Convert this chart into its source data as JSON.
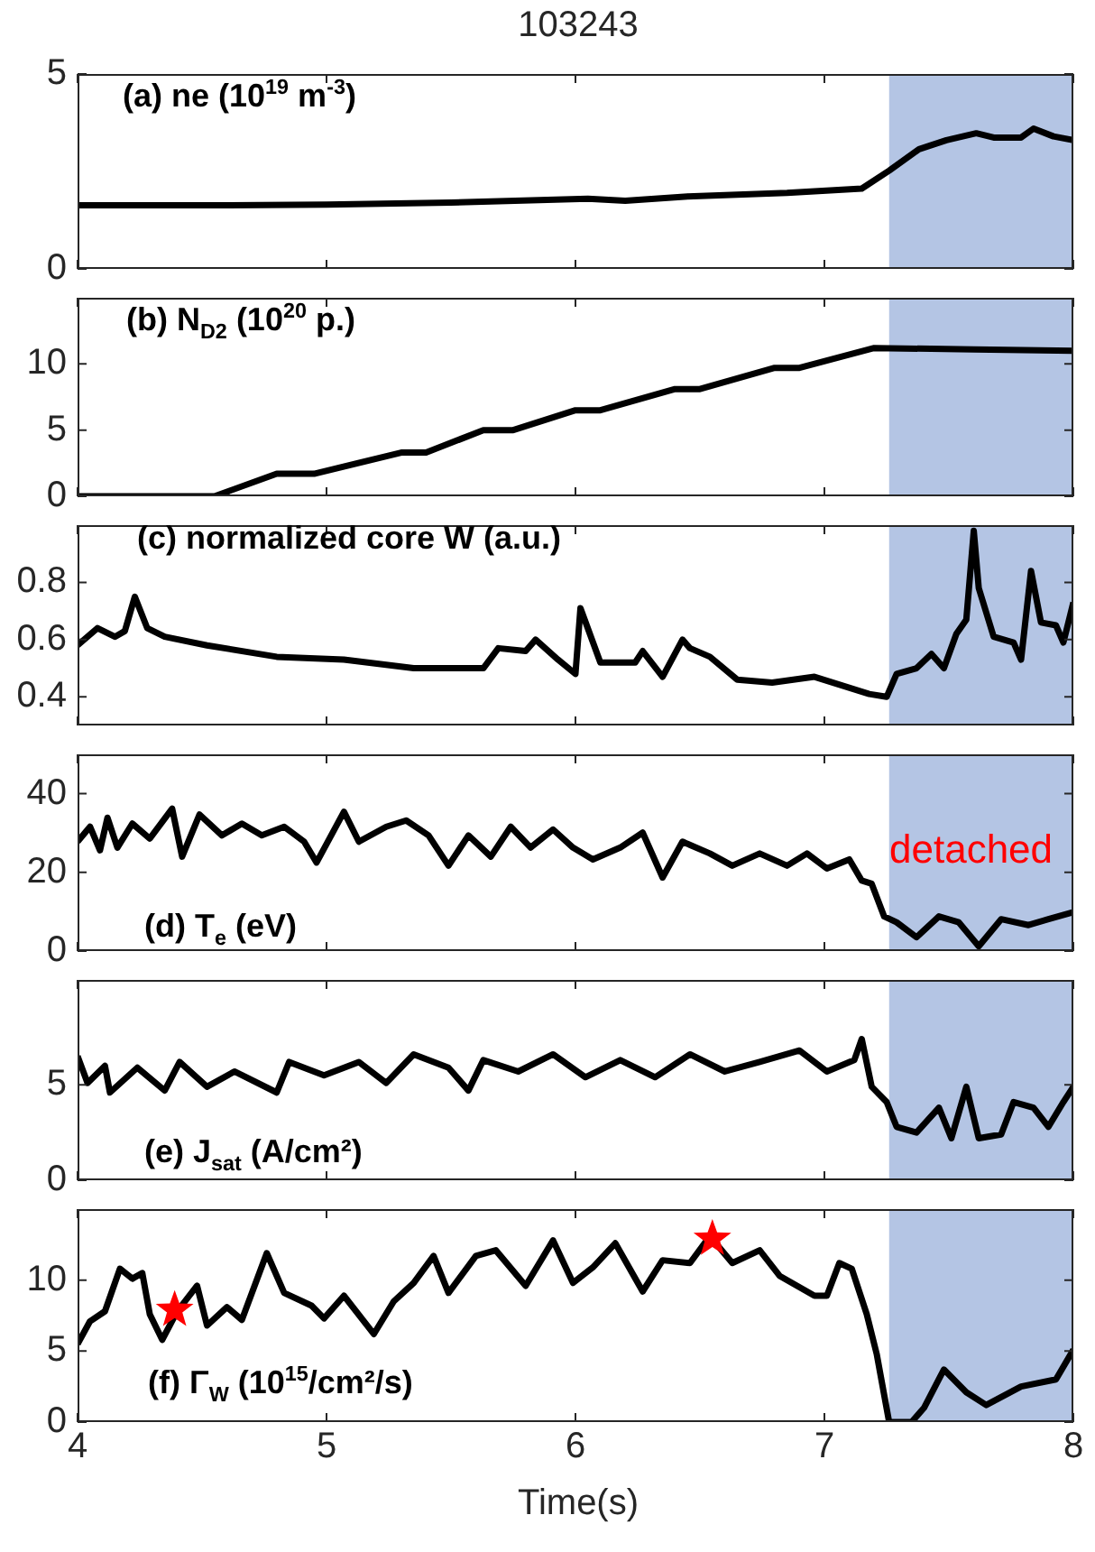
{
  "chart_data": [
    {
      "type": "line",
      "title": "103243",
      "annotations": [
        "(a) ne (10$^{19}$ m$^{-3}$)"
      ],
      "xlim": [
        4,
        8
      ],
      "xticks": [
        4,
        5,
        6,
        7,
        8
      ],
      "ylim": [
        0,
        5
      ],
      "yticks": [
        0,
        5
      ],
      "tick_labels": "y",
      "bands": [
        {
          "axis": "x",
          "from": 7.26,
          "to": 8,
          "color": "#b4c5e4"
        }
      ],
      "series": [
        {
          "color": "#000000",
          "x": [
            4.0,
            4.5,
            5.0,
            5.5,
            6.05,
            6.2,
            6.45,
            6.85,
            7.15,
            7.26,
            7.38,
            7.49,
            7.61,
            7.68,
            7.79,
            7.84,
            7.92,
            8.0
          ],
          "values": [
            1.63,
            1.63,
            1.65,
            1.7,
            1.8,
            1.75,
            1.86,
            1.95,
            2.06,
            2.52,
            3.07,
            3.3,
            3.48,
            3.37,
            3.37,
            3.6,
            3.4,
            3.3
          ]
        }
      ]
    },
    {
      "type": "line",
      "annotations": [
        "(b) N$_{D2}$ (10$^{20}$ p.)"
      ],
      "xlim": [
        4,
        8
      ],
      "xticks": [
        4,
        5,
        6,
        7,
        8
      ],
      "ylim": [
        0,
        15
      ],
      "yticks": [
        0,
        5,
        10
      ],
      "tick_labels": "y",
      "bands": [
        {
          "axis": "x",
          "from": 7.26,
          "to": 8,
          "color": "#b4c5e4"
        }
      ],
      "series": [
        {
          "color": "#000000",
          "x": [
            4.0,
            4.55,
            4.8,
            4.95,
            5.3,
            5.4,
            5.63,
            5.75,
            6.0,
            6.1,
            6.4,
            6.5,
            6.8,
            6.9,
            7.2,
            7.6,
            8.0
          ],
          "values": [
            0,
            0,
            1.7,
            1.7,
            3.3,
            3.3,
            5.0,
            5.0,
            6.5,
            6.5,
            8.1,
            8.1,
            9.7,
            9.7,
            11.2,
            11.1,
            11.0
          ]
        }
      ]
    },
    {
      "type": "line",
      "annotations": [
        "(c) normalized core W (a.u.)"
      ],
      "xlim": [
        4,
        8
      ],
      "xticks": [
        4,
        5,
        6,
        7,
        8
      ],
      "ylim": [
        0.3,
        1.0
      ],
      "yticks": [
        0.4,
        0.6,
        0.8
      ],
      "tick_labels": "y",
      "bands": [
        {
          "axis": "x",
          "from": 7.26,
          "to": 8,
          "color": "#b4c5e4"
        }
      ],
      "series": [
        {
          "color": "#000000",
          "x": [
            4.0,
            4.08,
            4.15,
            4.19,
            4.23,
            4.28,
            4.35,
            4.52,
            4.8,
            5.07,
            5.35,
            5.63,
            5.69,
            5.8,
            5.84,
            5.93,
            6.0,
            6.02,
            6.1,
            6.24,
            6.27,
            6.35,
            6.43,
            6.46,
            6.54,
            6.65,
            6.79,
            6.96,
            7.07,
            7.18,
            7.25,
            7.29,
            7.37,
            7.43,
            7.48,
            7.53,
            7.57,
            7.6,
            7.62,
            7.68,
            7.76,
            7.79,
            7.83,
            7.87,
            7.93,
            7.96,
            8.0
          ],
          "values": [
            0.58,
            0.64,
            0.61,
            0.63,
            0.75,
            0.64,
            0.61,
            0.58,
            0.54,
            0.53,
            0.5,
            0.5,
            0.57,
            0.56,
            0.6,
            0.53,
            0.48,
            0.71,
            0.52,
            0.52,
            0.56,
            0.47,
            0.6,
            0.57,
            0.54,
            0.46,
            0.45,
            0.47,
            0.44,
            0.41,
            0.4,
            0.48,
            0.5,
            0.55,
            0.5,
            0.62,
            0.67,
            0.98,
            0.78,
            0.61,
            0.59,
            0.53,
            0.84,
            0.66,
            0.65,
            0.59,
            0.73
          ]
        }
      ]
    },
    {
      "type": "line",
      "annotations": [
        "(d) T$_{e}$ (eV)",
        "detached"
      ],
      "xlim": [
        4,
        8
      ],
      "xticks": [
        4,
        5,
        6,
        7,
        8
      ],
      "ylim": [
        0,
        50
      ],
      "yticks": [
        0,
        20,
        40
      ],
      "tick_labels": "y",
      "bands": [
        {
          "axis": "x",
          "from": 7.26,
          "to": 8,
          "color": "#b4c5e4"
        }
      ],
      "series": [
        {
          "color": "#000000",
          "x": [
            4.0,
            4.05,
            4.09,
            4.12,
            4.16,
            4.22,
            4.29,
            4.38,
            4.42,
            4.49,
            4.58,
            4.66,
            4.74,
            4.83,
            4.91,
            4.96,
            5.07,
            5.13,
            5.24,
            5.32,
            5.41,
            5.49,
            5.57,
            5.66,
            5.74,
            5.82,
            5.91,
            5.99,
            6.07,
            6.18,
            6.27,
            6.35,
            6.43,
            6.54,
            6.63,
            6.74,
            6.85,
            6.93,
            7.01,
            7.1,
            7.15,
            7.19,
            7.24,
            7.29,
            7.37,
            7.46,
            7.54,
            7.62,
            7.71,
            7.82,
            7.9,
            8.0
          ],
          "values": [
            27.8,
            31.6,
            25.6,
            33.9,
            26.3,
            32.4,
            28.6,
            36.2,
            24.0,
            34.7,
            29.4,
            32.4,
            29.4,
            31.6,
            27.8,
            22.5,
            35.4,
            27.8,
            31.6,
            33.2,
            29.4,
            21.7,
            29.4,
            24.0,
            31.6,
            26.3,
            30.9,
            26.3,
            23.3,
            26.3,
            30.1,
            18.7,
            27.8,
            24.8,
            21.7,
            24.8,
            21.7,
            24.8,
            21.0,
            23.3,
            17.9,
            17.1,
            8.8,
            7.3,
            3.5,
            8.8,
            7.3,
            1.2,
            8.1,
            6.6,
            8.1,
            9.9
          ]
        }
      ]
    },
    {
      "type": "line",
      "annotations": [
        "(e) J$_{sat}$ (A/cm²)"
      ],
      "xlim": [
        4,
        8
      ],
      "xticks": [
        4,
        5,
        6,
        7,
        8
      ],
      "ylim": [
        0,
        10.5
      ],
      "yticks": [
        0,
        5
      ],
      "tick_labels": "y",
      "bands": [
        {
          "axis": "x",
          "from": 7.26,
          "to": 8,
          "color": "#b4c5e4"
        }
      ],
      "series": [
        {
          "color": "#000000",
          "x": [
            4.0,
            4.04,
            4.11,
            4.13,
            4.24,
            4.35,
            4.41,
            4.52,
            4.63,
            4.8,
            4.85,
            4.99,
            5.13,
            5.24,
            5.35,
            5.49,
            5.57,
            5.63,
            5.77,
            5.91,
            6.04,
            6.18,
            6.32,
            6.46,
            6.6,
            6.74,
            6.9,
            7.01,
            7.12,
            7.15,
            7.19,
            7.25,
            7.29,
            7.37,
            7.46,
            7.51,
            7.57,
            7.62,
            7.71,
            7.76,
            7.84,
            7.9,
            7.96,
            8.0
          ],
          "values": [
            6.5,
            5.1,
            6.0,
            4.6,
            5.9,
            4.7,
            6.2,
            4.9,
            5.7,
            4.6,
            6.2,
            5.5,
            6.2,
            5.1,
            6.6,
            5.9,
            4.7,
            6.3,
            5.7,
            6.6,
            5.4,
            6.3,
            5.4,
            6.6,
            5.7,
            6.2,
            6.8,
            5.7,
            6.3,
            7.4,
            4.9,
            4.1,
            2.8,
            2.5,
            3.8,
            2.2,
            4.9,
            2.2,
            2.4,
            4.1,
            3.8,
            2.8,
            4.1,
            4.9
          ]
        }
      ]
    },
    {
      "type": "line",
      "xlabel": "Time(s)",
      "annotations": [
        "(f) Γ$_{W}$ (10$^{15}$/cm²/s)"
      ],
      "xlim": [
        4,
        8
      ],
      "xticks": [
        4,
        5,
        6,
        7,
        8
      ],
      "ylim": [
        0,
        15
      ],
      "yticks": [
        0,
        5,
        10
      ],
      "bands": [
        {
          "axis": "x",
          "from": 7.26,
          "to": 8,
          "color": "#b4c5e4"
        }
      ],
      "series": [
        {
          "color": "#000000",
          "x": [
            4.0,
            4.05,
            4.11,
            4.17,
            4.22,
            4.26,
            4.29,
            4.34,
            4.4,
            4.48,
            4.52,
            4.6,
            4.66,
            4.76,
            4.83,
            4.94,
            4.99,
            5.07,
            5.19,
            5.27,
            5.35,
            5.43,
            5.49,
            5.6,
            5.68,
            5.8,
            5.91,
            5.99,
            6.07,
            6.16,
            6.27,
            6.35,
            6.46,
            6.54,
            6.63,
            6.74,
            6.82,
            6.96,
            7.01,
            7.06,
            7.11,
            7.17,
            7.21,
            7.26,
            7.35,
            7.4,
            7.48,
            7.57,
            7.65,
            7.79,
            7.93,
            8.0
          ],
          "values": [
            5.5,
            7.1,
            7.8,
            10.8,
            10.1,
            10.5,
            7.6,
            5.8,
            7.8,
            9.6,
            6.8,
            8.1,
            7.2,
            11.9,
            9.1,
            8.2,
            7.3,
            8.9,
            6.2,
            8.5,
            9.8,
            11.7,
            9.1,
            11.7,
            12.1,
            9.6,
            12.8,
            9.8,
            10.9,
            12.6,
            9.2,
            11.4,
            11.2,
            13.1,
            11.2,
            12.1,
            10.3,
            8.9,
            8.9,
            11.2,
            10.8,
            7.6,
            4.8,
            0,
            0,
            1.0,
            3.7,
            2.1,
            1.2,
            2.5,
            3.0,
            5.1
          ]
        },
        {
          "type": "scatter",
          "marker": "star",
          "color": "#ff0000",
          "x": [
            4.39,
            6.55
          ],
          "values": [
            7.9,
            12.9
          ]
        }
      ]
    }
  ]
}
